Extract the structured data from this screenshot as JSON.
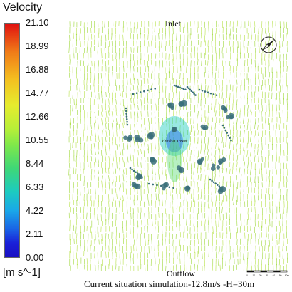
{
  "legend": {
    "title": "Velocity",
    "unit": "[m s^-1]",
    "ticks": [
      "21.10",
      "18.99",
      "16.88",
      "14.77",
      "12.66",
      "10.55",
      "8.44",
      "6.33",
      "4.22",
      "2.11",
      "0.00"
    ]
  },
  "labels": {
    "inlet": "Inlet",
    "outflow": "Outflow",
    "center": "Zhuzhai Tower",
    "caption": "Current situation simulation-12.8m/s -H=30m"
  },
  "scale_bar": {
    "ticks": [
      "0",
      "10",
      "20",
      "30",
      "40",
      "50",
      "60m"
    ]
  },
  "colors": {
    "field_vector": "#b8e24a",
    "field_vector_alt": "#9fd83c",
    "building": "#3a6f7a",
    "wake_high": "#1ccbc0",
    "wake_low": "#1a64e6"
  },
  "icons": [
    "north-arrow-icon"
  ]
}
